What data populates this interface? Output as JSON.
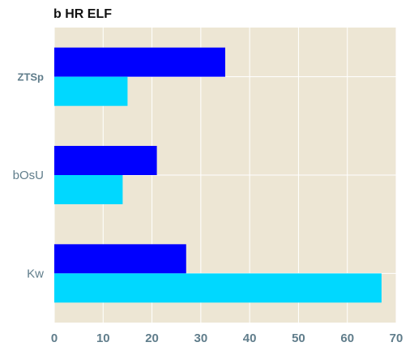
{
  "chart_data": {
    "type": "bar",
    "orientation": "horizontal",
    "title": "b HR ELF",
    "categories": [
      "ZTSp",
      "bOsU",
      "Kw"
    ],
    "series": [
      {
        "values": [
          35,
          21,
          27
        ],
        "color": "#0000ff"
      },
      {
        "values": [
          15,
          14,
          67
        ],
        "color": "#00d8ff"
      }
    ],
    "xlim": [
      0,
      70
    ],
    "xticks": [
      0,
      10,
      20,
      30,
      40,
      50,
      60,
      70
    ],
    "grid": true,
    "plot_background": "#ede6d4",
    "grid_color": "#ffffff",
    "tick_color": "#607d8b"
  }
}
